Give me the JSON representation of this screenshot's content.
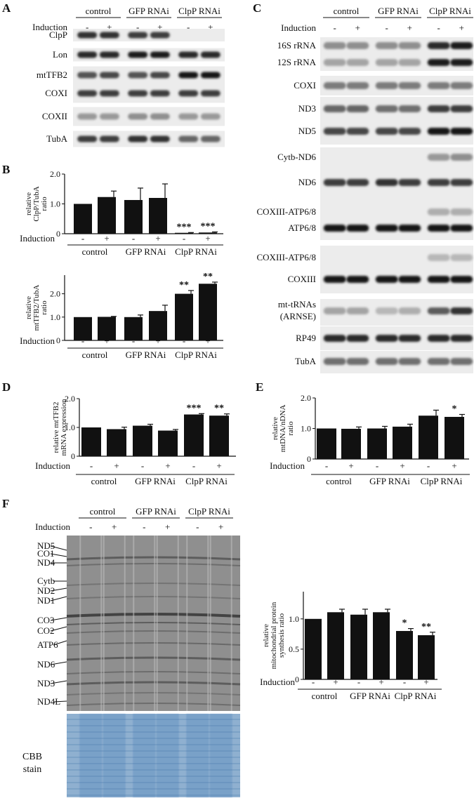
{
  "panels": {
    "A": {
      "letter": "A",
      "groups": [
        "control",
        "GFP RNAi",
        "ClpP RNAi"
      ],
      "induction_label": "Induction",
      "signs": [
        "-",
        "+",
        "-",
        "+",
        "-",
        "+"
      ],
      "blot_labels": [
        "ClpP",
        "Lon",
        "mtTFB2",
        "COXI",
        "COXII",
        "TubA"
      ]
    },
    "B": {
      "letter": "B",
      "groups": [
        "control",
        "GFP RNAi",
        "ClpP RNAi"
      ],
      "induction_label": "Induction",
      "signs": [
        "-",
        "+",
        "-",
        "+",
        "-",
        "+"
      ]
    },
    "C": {
      "letter": "C",
      "groups": [
        "control",
        "GFP RNAi",
        "ClpP RNAi"
      ],
      "induction_label": "Induction",
      "signs": [
        "-",
        "+",
        "-",
        "+",
        "-",
        "+"
      ],
      "blot_labels": [
        "16S rRNA",
        "12S rRNA",
        "COXI",
        "ND3",
        "ND5",
        "Cytb-ND6",
        "ND6",
        "COXIII-ATP6/8",
        "ATP6/8",
        "COXIII-ATP6/8",
        "COXIII",
        "mt-tRNAs",
        "(ARNSE)",
        "RP49",
        "TubA"
      ]
    },
    "D": {
      "letter": "D",
      "groups": [
        "control",
        "GFP RNAi",
        "ClpP RNAi"
      ],
      "induction_label": "Induction",
      "signs": [
        "-",
        "+",
        "-",
        "+",
        "-",
        "+"
      ]
    },
    "E": {
      "letter": "E",
      "groups": [
        "control",
        "GFP RNAi",
        "ClpP RNAi"
      ],
      "induction_label": "Induction",
      "signs": [
        "-",
        "+",
        "-",
        "+",
        "-",
        "+"
      ]
    },
    "F": {
      "letter": "F",
      "groups": [
        "control",
        "GFP RNAi",
        "ClpP RNAi"
      ],
      "induction_label": "Induction",
      "signs": [
        "-",
        "+",
        "-",
        "+",
        "-",
        "+"
      ],
      "gel_labels": [
        "ND5",
        "CO1",
        "ND4",
        "Cytb",
        "ND2",
        "ND1",
        "CO3",
        "CO2",
        "ATP6",
        "ND6",
        "ND3",
        "ND4L"
      ],
      "stain_label_1": "CBB",
      "stain_label_2": "stain",
      "gel_color": "#8f8f8f",
      "stain_color": "#8fb0d0"
    }
  },
  "chart_data": [
    {
      "panel": "B-top",
      "type": "bar",
      "ylabel": [
        "relative",
        "ClpP/TubA",
        "ratio"
      ],
      "ylim": [
        0,
        2.0
      ],
      "ticks": [
        "0",
        "1.0",
        "2.0"
      ],
      "values": [
        1.0,
        1.23,
        1.13,
        1.2,
        0.03,
        0.04
      ],
      "errors": [
        0.0,
        0.2,
        0.4,
        0.47,
        0.01,
        0.02
      ],
      "annotations": [
        "",
        "",
        "",
        "",
        "***",
        "***"
      ]
    },
    {
      "panel": "B-bottom",
      "type": "bar",
      "ylabel": [
        "relative",
        "mtTFB2/TubA",
        "ratio"
      ],
      "ylim": [
        0,
        2.8
      ],
      "ticks": [
        "0",
        "1.0",
        "2.0"
      ],
      "values": [
        1.0,
        1.01,
        1.0,
        1.26,
        2.0,
        2.43
      ],
      "errors": [
        0.0,
        0.02,
        0.09,
        0.25,
        0.14,
        0.07
      ],
      "annotations": [
        "",
        "",
        "",
        "",
        "**",
        "**"
      ]
    },
    {
      "panel": "D",
      "type": "bar",
      "ylabel": [
        "relative mtTFB2",
        "mRNA expression"
      ],
      "ylim": [
        0,
        2.0
      ],
      "ticks": [
        "0",
        "1.0",
        "2.0"
      ],
      "values": [
        1.0,
        0.94,
        1.06,
        0.89,
        1.45,
        1.41
      ],
      "errors": [
        0.0,
        0.07,
        0.05,
        0.04,
        0.03,
        0.06
      ],
      "annotations": [
        "",
        "",
        "",
        "",
        "***",
        "**"
      ]
    },
    {
      "panel": "E",
      "type": "bar",
      "ylabel": [
        "relative",
        "mtDNA/nDNA",
        "ratio"
      ],
      "ylim": [
        0,
        2.0
      ],
      "ticks": [
        "0",
        "1.0",
        "2.0"
      ],
      "values": [
        1.0,
        0.99,
        1.0,
        1.06,
        1.42,
        1.38
      ],
      "errors": [
        0.0,
        0.06,
        0.07,
        0.08,
        0.18,
        0.08
      ],
      "annotations": [
        "",
        "",
        "",
        "",
        "",
        "*"
      ]
    },
    {
      "panel": "F",
      "type": "bar",
      "ylabel": [
        "relative",
        "mitochondrial protein",
        "synthesis ratio"
      ],
      "ylim": [
        0,
        1.45
      ],
      "ticks": [
        "0",
        "0.5",
        "1.0"
      ],
      "values": [
        1.0,
        1.11,
        1.07,
        1.11,
        0.8,
        0.73
      ],
      "errors": [
        0.0,
        0.05,
        0.09,
        0.05,
        0.04,
        0.05
      ],
      "annotations": [
        "",
        "",
        "",
        "",
        "*",
        "**"
      ]
    }
  ]
}
